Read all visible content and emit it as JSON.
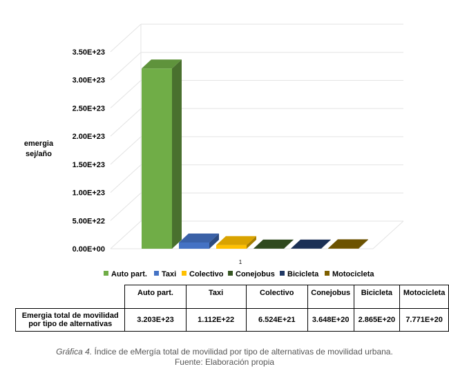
{
  "chart_data": {
    "type": "bar",
    "style": "3d",
    "categories": [
      "Auto part.",
      "Taxi",
      "Colectivo",
      "Conejobus",
      "Bicicleta",
      "Motocicleta"
    ],
    "values": [
      3.203e+23,
      1.112e+22,
      6.524e+21,
      3.648e+20,
      2.865e+20,
      7.771e+20
    ],
    "colors": [
      "#70ad47",
      "#4472c4",
      "#ffc000",
      "#375623",
      "#203864",
      "#7f6000"
    ],
    "ylabel": "emergia sej/año",
    "ylim": [
      0,
      3.5e+23
    ],
    "yticks": [
      "0.00E+00",
      "5.00E+22",
      "1.00E+23",
      "1.50E+23",
      "2.00E+23",
      "2.50E+23",
      "3.00E+23",
      "3.50E+23"
    ],
    "xtick": "1",
    "grid": true,
    "legend": "bottom"
  },
  "ylabel_lines": [
    "emergia",
    "sej/año"
  ],
  "table": {
    "row_label": "Emergia total de movilidad por tipo de alternativas",
    "headers": [
      "Auto part.",
      "Taxi",
      "Colectivo",
      "Conejobus",
      "Bicicleta",
      "Motocicleta"
    ],
    "values": [
      "3.203E+23",
      "1.112E+22",
      "6.524E+21",
      "3.648E+20",
      "2.865E+20",
      "7.771E+20"
    ]
  },
  "caption": {
    "figure": "Gráfica 4.",
    "text": "Índice de eMergía total de movilidad por tipo de alternativas de movilidad urbana.",
    "source": "Fuente: Elaboración propia"
  }
}
